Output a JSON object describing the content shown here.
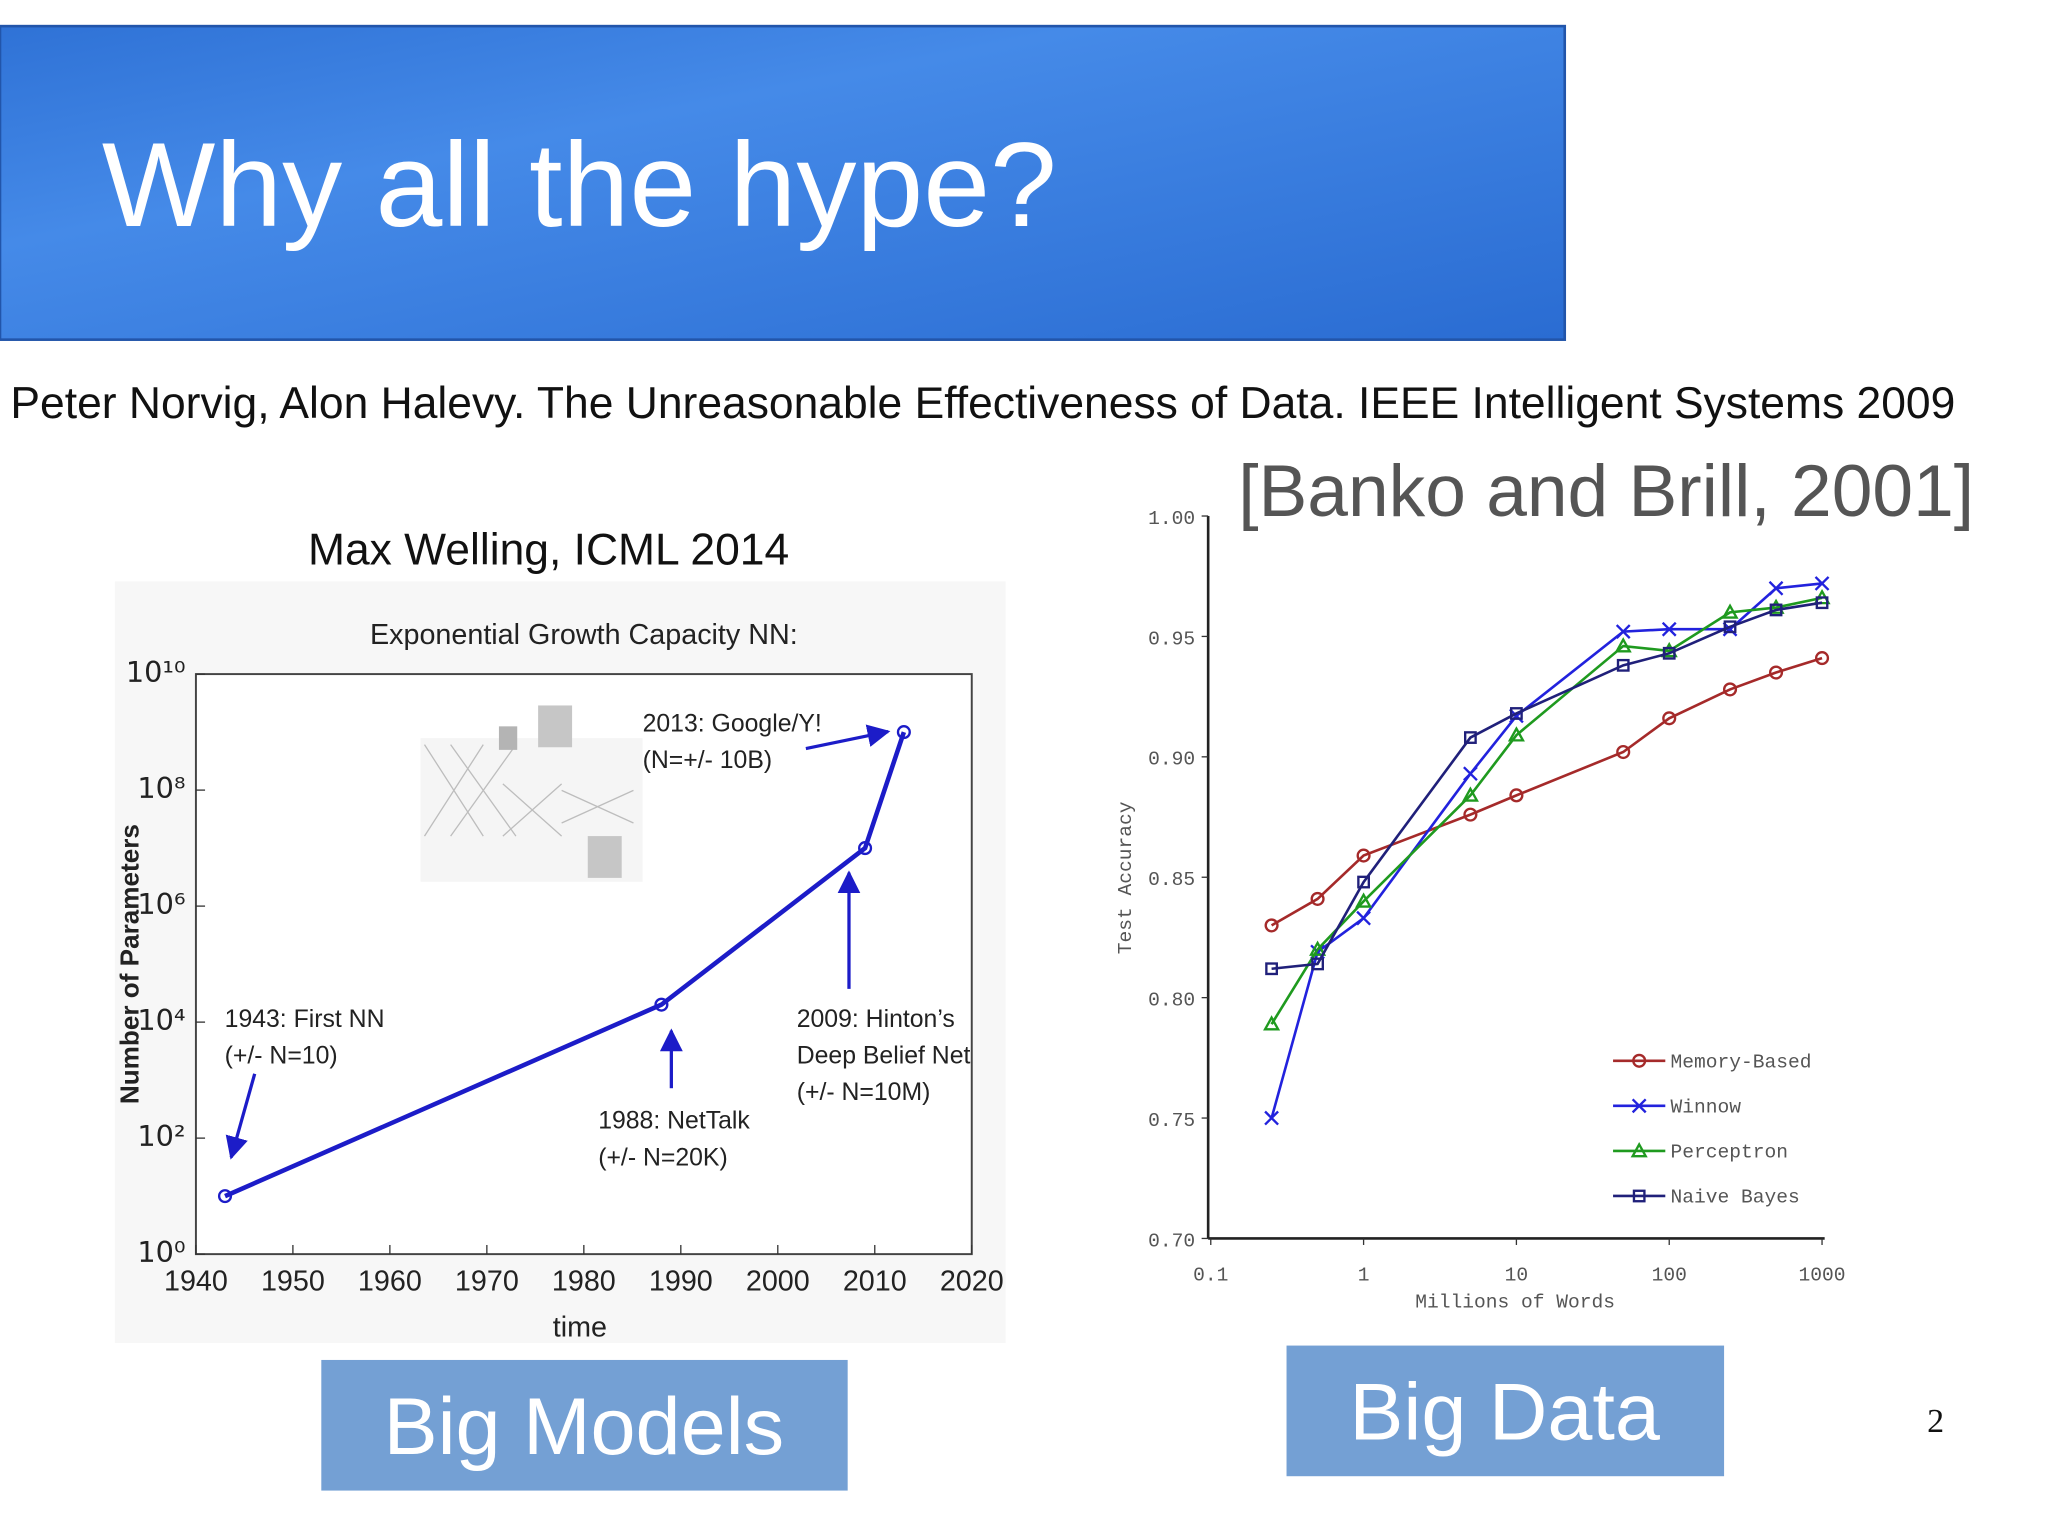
{
  "title": "Why all the hype?",
  "citation": "Peter Norvig, Alon Halevy. The Unreasonable Effectiveness of Data. IEEE Intelligent Systems 2009",
  "chart_data": [
    {
      "type": "line",
      "source": "Max Welling, ICML 2014",
      "title": "Exponential Growth Capacity NN:",
      "x_label": "time",
      "y_label": "Number of Parameters",
      "x": [
        1943,
        1988,
        2009,
        2013
      ],
      "values": [
        10,
        20000,
        10000000,
        1000000000
      ],
      "color": "#1c1cc8",
      "xlim": [
        1940,
        2020
      ],
      "xticks": [
        1940,
        1950,
        1960,
        1970,
        1980,
        1990,
        2000,
        2010,
        2020
      ],
      "ylim": [
        1,
        10000000000
      ],
      "log_y": true,
      "yticks": [
        {
          "value": 1,
          "label": "10⁰"
        },
        {
          "value": 100,
          "label": "10²"
        },
        {
          "value": 10000,
          "label": "10⁴"
        },
        {
          "value": 1000000,
          "label": "10⁶"
        },
        {
          "value": 100000000,
          "label": "10⁸"
        },
        {
          "value": 10000000000,
          "label": "10¹⁰"
        }
      ],
      "annotations": [
        [
          "1943: First NN",
          "(+/- N=10)"
        ],
        [
          "1988: NetTalk",
          "(+/- N=20K)"
        ],
        [
          "2009: Hinton’s",
          "Deep Belief Net",
          "(+/- N=10M)"
        ],
        [
          "2013: Google/Y!",
          "(N=+/- 10B)"
        ]
      ]
    },
    {
      "type": "line",
      "title": "[Banko and Brill, 2001]",
      "x_label": "Millions of Words",
      "y_label": "Test Accuracy",
      "x": [
        0.25,
        0.5,
        1,
        5,
        10,
        50,
        100,
        250,
        500,
        1000
      ],
      "xlim": [
        0.1,
        1000
      ],
      "xticks": [
        0.1,
        1,
        10,
        100,
        1000
      ],
      "log_x": true,
      "ylim": [
        0.7,
        1.0
      ],
      "yticks": [
        {
          "value": 0.7,
          "label": "0.70"
        },
        0.75,
        {
          "value": 0.8,
          "label": "0.80"
        },
        0.85,
        {
          "value": 0.9,
          "label": "0.90"
        },
        0.95,
        {
          "value": 1.0,
          "label": "1.00"
        }
      ],
      "legend": "lower right",
      "series": [
        {
          "name": "Memory-Based",
          "color": "#a52a2a",
          "marker": "o",
          "values": [
            0.83,
            0.841,
            0.859,
            0.876,
            0.884,
            0.902,
            0.916,
            0.928,
            0.935,
            0.941
          ]
        },
        {
          "name": "Winnow",
          "color": "#2222dd",
          "marker": "x",
          "values": [
            0.75,
            0.819,
            0.833,
            0.893,
            0.917,
            0.952,
            0.953,
            0.953,
            0.97,
            0.972
          ]
        },
        {
          "name": "Perceptron",
          "color": "#1f9a1f",
          "marker": "^",
          "values": [
            0.789,
            0.82,
            0.84,
            0.884,
            0.909,
            0.946,
            0.944,
            0.96,
            0.962,
            0.966
          ]
        },
        {
          "name": "Naive Bayes",
          "color": "#20207a",
          "marker": "s",
          "values": [
            0.812,
            0.814,
            0.848,
            0.908,
            0.918,
            0.938,
            0.943,
            0.954,
            0.961,
            0.964
          ]
        }
      ]
    }
  ],
  "buttons": [
    "Big Models",
    "Big Data"
  ],
  "page_number": "2"
}
